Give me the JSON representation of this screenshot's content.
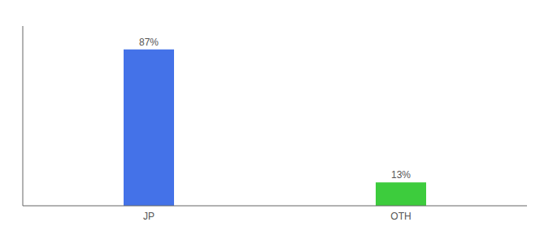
{
  "chart_data": {
    "type": "bar",
    "categories": [
      "JP",
      "OTH"
    ],
    "values": [
      87,
      13
    ],
    "value_labels": [
      "87%",
      "13%"
    ],
    "data_labels": true,
    "colors": [
      "#4472e8",
      "#3dcc3d"
    ],
    "ylim": [
      0,
      100
    ],
    "tick_labels": "x",
    "grid": false
  }
}
